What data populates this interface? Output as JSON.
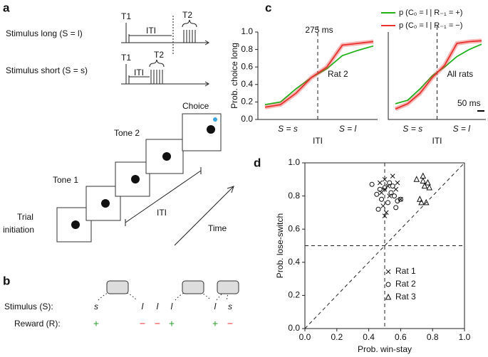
{
  "panel_labels": [
    "a",
    "b",
    "c",
    "d"
  ],
  "diagram_a": {
    "long_label": "Stimulus long (S = l)",
    "short_label": "Stimulus short (S = s)",
    "long_t1": "T1",
    "long_iti": "ITI",
    "long_t2": "T2",
    "short_t1": "T1",
    "short_iti": "ITI",
    "short_t2": "T2",
    "steps": [
      "Choice",
      "Tone 2",
      "Tone 1",
      "Trial",
      "initiation"
    ],
    "iti": "ITI",
    "time": "Time"
  },
  "diagram_b": {
    "stimulus_label": "Stimulus (S):",
    "reward_label": "Reward (R):",
    "stimuli": [
      "s",
      "l",
      "l",
      "l",
      "l",
      "s"
    ],
    "rewards": [
      "+",
      "−",
      "−",
      "+",
      "+",
      "−"
    ]
  },
  "chart_data": [
    {
      "type": "line",
      "ylabel": "Prob. choice long",
      "xlabel": "ITI",
      "annotation": "275 ms",
      "inset_label": "Rat 2",
      "categories": [
        null,
        null,
        null,
        null,
        null,
        null,
        null,
        null
      ],
      "x_group_labels": [
        "S = s",
        "S = l"
      ],
      "ylim": [
        0,
        1.0
      ],
      "yticks": [
        {
          "value": 0,
          "label": "0.0"
        },
        0.2,
        0.4,
        0.6,
        0.8,
        {
          "value": 1,
          "label": "1.0"
        }
      ],
      "series": [
        {
          "name": "p (C₀ = l | R₋₁ = +)",
          "color": "#22b11e",
          "values": [
            0.17,
            0.2,
            0.35,
            0.48,
            0.58,
            0.73,
            0.79,
            0.84
          ]
        },
        {
          "name": "p (C₀ = l | R₋₁ = −)",
          "color": "#e8312f",
          "values": [
            0.14,
            0.17,
            0.3,
            0.48,
            0.6,
            0.85,
            0.87,
            0.89
          ]
        }
      ]
    },
    {
      "type": "line",
      "xlabel": "ITI",
      "inset_label": "All rats",
      "scale_bar": "50 ms",
      "categories": [
        null,
        null,
        null,
        null,
        null,
        null,
        null,
        null
      ],
      "x_group_labels": [
        "S = s",
        "S = l"
      ],
      "ylim": [
        0,
        1.0
      ],
      "legend": "top-right",
      "series": [
        {
          "name": "p (C₀ = l | R₋₁ = +)",
          "color": "#22b11e",
          "values": [
            0.18,
            0.22,
            0.35,
            0.5,
            0.6,
            0.72,
            0.8,
            0.86
          ]
        },
        {
          "name": "p (C₀ = l | R₋₁ = −)",
          "color": "#e8312f",
          "values": [
            0.12,
            0.18,
            0.3,
            0.48,
            0.62,
            0.87,
            0.89,
            0.9
          ]
        }
      ]
    },
    {
      "type": "scatter",
      "xlabel": "Prob. win-stay",
      "ylabel": "Prob. lose-switch",
      "xlim": [
        0,
        1.0
      ],
      "ylim": [
        0,
        1.0
      ],
      "xticks": [
        {
          "value": 0,
          "label": "0.0"
        },
        0.2,
        0.4,
        0.6,
        0.8,
        {
          "value": 1,
          "label": "1.0"
        }
      ],
      "yticks": [
        {
          "value": 0,
          "label": "0.0"
        },
        0.2,
        0.4,
        0.6,
        0.8,
        {
          "value": 1,
          "label": "1.0"
        }
      ],
      "reference_x": 0.5,
      "reference_y": 0.5,
      "legend": "bottom-right",
      "series": [
        {
          "name": "Rat 1",
          "marker": "x",
          "x": [
            0.47,
            0.48,
            0.5,
            0.52,
            0.49,
            0.55,
            0.57,
            0.5,
            0.51,
            0.53,
            0.58,
            0.6,
            0.5
          ],
          "values": [
            0.88,
            0.82,
            0.9,
            0.86,
            0.74,
            0.92,
            0.84,
            0.68,
            0.7,
            0.8,
            0.88,
            0.78,
            0.84
          ]
        },
        {
          "name": "Rat 2",
          "marker": "circle",
          "x": [
            0.42,
            0.46,
            0.45,
            0.48,
            0.52,
            0.54,
            0.56,
            0.55,
            0.58,
            0.6,
            0.5,
            0.47,
            0.53,
            0.57
          ],
          "values": [
            0.87,
            0.72,
            0.81,
            0.78,
            0.76,
            0.82,
            0.8,
            0.86,
            0.77,
            0.78,
            0.85,
            0.84,
            0.88,
            0.73
          ]
        },
        {
          "name": "Rat 3",
          "marker": "triangle",
          "x": [
            0.7,
            0.72,
            0.74,
            0.75,
            0.77,
            0.78,
            0.76,
            0.73,
            0.74
          ],
          "values": [
            0.9,
            0.78,
            0.92,
            0.86,
            0.88,
            0.85,
            0.76,
            0.76,
            0.89
          ]
        }
      ]
    }
  ]
}
